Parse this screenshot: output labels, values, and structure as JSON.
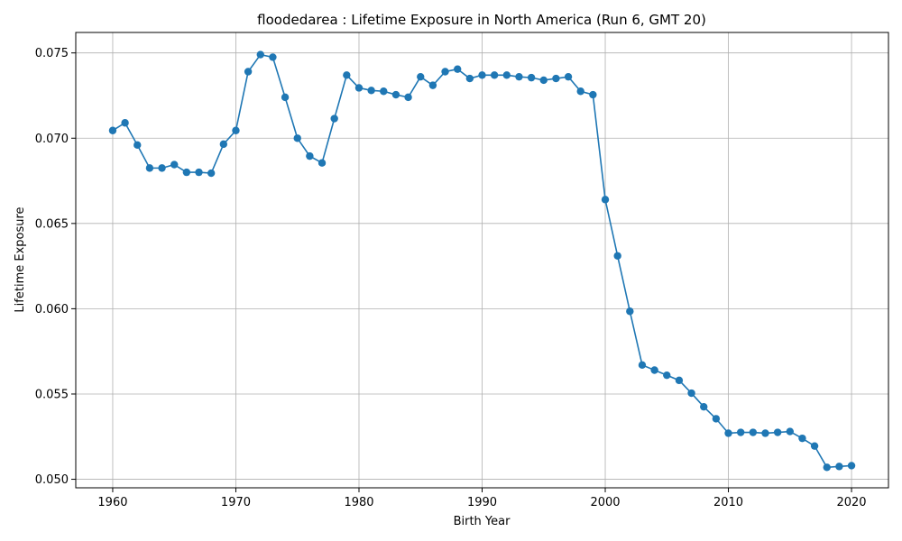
{
  "chart_data": {
    "type": "line",
    "title": "floodedarea : Lifetime Exposure in North America (Run 6, GMT 20)",
    "xlabel": "Birth Year",
    "ylabel": "Lifetime Exposure",
    "xlim": [
      1957,
      2023
    ],
    "ylim": [
      0.0495,
      0.0762
    ],
    "xticks": [
      1960,
      1970,
      1980,
      1990,
      2000,
      2010,
      2020
    ],
    "yticks": [
      0.05,
      0.055,
      0.06,
      0.065,
      0.07,
      0.075
    ],
    "ytick_labels": [
      "0.050",
      "0.055",
      "0.060",
      "0.065",
      "0.070",
      "0.075"
    ],
    "grid": true,
    "markers": "circle",
    "series": [
      {
        "color": "#1f77b4",
        "x": [
          1960,
          1961,
          1962,
          1963,
          1964,
          1965,
          1966,
          1967,
          1968,
          1969,
          1970,
          1971,
          1972,
          1973,
          1974,
          1975,
          1976,
          1977,
          1978,
          1979,
          1980,
          1981,
          1982,
          1983,
          1984,
          1985,
          1986,
          1987,
          1988,
          1989,
          1990,
          1991,
          1992,
          1993,
          1994,
          1995,
          1996,
          1997,
          1998,
          1999,
          2000,
          2001,
          2002,
          2003,
          2004,
          2005,
          2006,
          2007,
          2008,
          2009,
          2010,
          2011,
          2012,
          2013,
          2014,
          2015,
          2016,
          2017,
          2018,
          2019,
          2020
        ],
        "values": [
          0.07045,
          0.0709,
          0.0696,
          0.06825,
          0.06825,
          0.06845,
          0.068,
          0.068,
          0.06795,
          0.06965,
          0.07045,
          0.0739,
          0.0749,
          0.07475,
          0.0724,
          0.07,
          0.06895,
          0.06855,
          0.07115,
          0.0737,
          0.07295,
          0.0728,
          0.07275,
          0.07255,
          0.0724,
          0.0736,
          0.0731,
          0.0739,
          0.07405,
          0.0735,
          0.0737,
          0.0737,
          0.0737,
          0.0736,
          0.07355,
          0.0734,
          0.0735,
          0.0736,
          0.07275,
          0.07255,
          0.0664,
          0.0631,
          0.05985,
          0.0567,
          0.0564,
          0.0561,
          0.0558,
          0.05505,
          0.05425,
          0.05355,
          0.0527,
          0.05275,
          0.05275,
          0.0527,
          0.05275,
          0.0528,
          0.0524,
          0.05195,
          0.0507,
          0.05075,
          0.0508
        ]
      }
    ]
  }
}
